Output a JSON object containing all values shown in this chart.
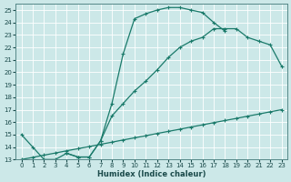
{
  "xlabel": "Humidex (Indice chaleur)",
  "bg_color": "#cce8e8",
  "grid_color": "#aacccc",
  "line_color": "#1a7a6a",
  "xlim": [
    -0.5,
    23.5
  ],
  "ylim": [
    13,
    25.5
  ],
  "xticks": [
    0,
    1,
    2,
    3,
    4,
    5,
    6,
    7,
    8,
    9,
    10,
    11,
    12,
    13,
    14,
    15,
    16,
    17,
    18,
    19,
    20,
    21,
    22,
    23
  ],
  "yticks": [
    13,
    14,
    15,
    16,
    17,
    18,
    19,
    20,
    21,
    22,
    23,
    24,
    25
  ],
  "line1_x": [
    0,
    1,
    2,
    3,
    4,
    5,
    6,
    7,
    8,
    9,
    10,
    11,
    12,
    13,
    14,
    15,
    16,
    17,
    18
  ],
  "line1_y": [
    15,
    14,
    13,
    13,
    13.5,
    13.2,
    13.2,
    14.5,
    17.5,
    21.5,
    24.3,
    24.7,
    25.0,
    25.2,
    25.2,
    25.0,
    24.8,
    24.0,
    23.3
  ],
  "line2_x": [
    4,
    5,
    6,
    7,
    8,
    9,
    10,
    11,
    12,
    13,
    14,
    15,
    16,
    17,
    18,
    19,
    20,
    21,
    22,
    23
  ],
  "line2_y": [
    13.5,
    13.2,
    13.2,
    14.5,
    16.5,
    17.5,
    18.5,
    19.3,
    20.2,
    21.2,
    22.0,
    22.5,
    22.8,
    23.5,
    23.5,
    23.5,
    22.8,
    22.5,
    22.2,
    20.5
  ],
  "line3_x": [
    0,
    1,
    2,
    3,
    4,
    5,
    6,
    7,
    8,
    9,
    10,
    11,
    12,
    13,
    14,
    15,
    16,
    17,
    18,
    19,
    20,
    21,
    22,
    23
  ],
  "line3_y": [
    13.0,
    13.17,
    13.35,
    13.52,
    13.7,
    13.87,
    14.04,
    14.22,
    14.39,
    14.57,
    14.74,
    14.91,
    15.09,
    15.26,
    15.43,
    15.61,
    15.78,
    15.96,
    16.13,
    16.3,
    16.48,
    16.65,
    16.83,
    17.0
  ]
}
